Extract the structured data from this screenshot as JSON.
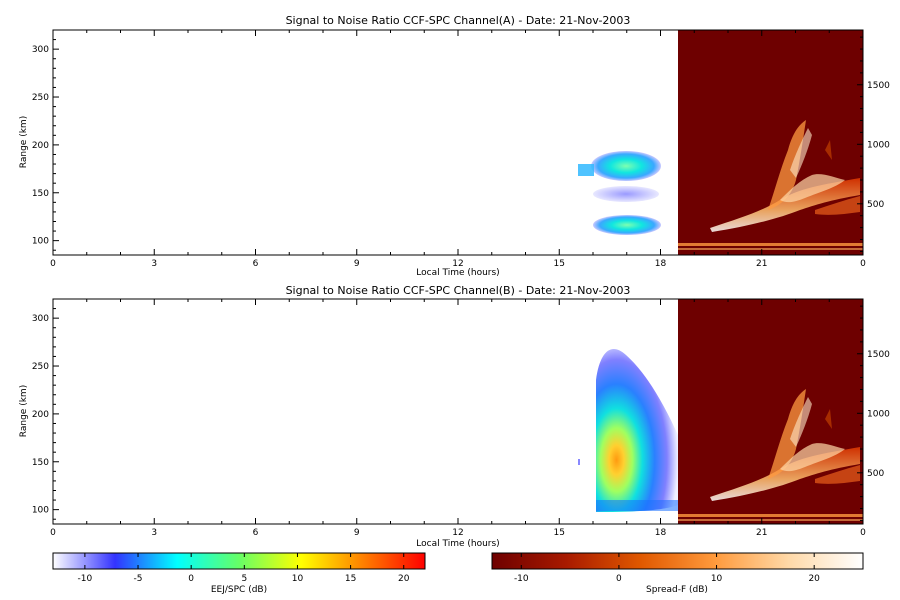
{
  "chart_data": [
    {
      "type": "heatmap",
      "title": "Signal to Noise Ratio CCF-SPC Channel(A) - Date: 21-Nov-2003",
      "xlabel": "Local Time (hours)",
      "ylabel": "Range (km)",
      "xlim": [
        0,
        24
      ],
      "ylim": [
        85,
        320
      ],
      "xticks": [
        "0",
        "3",
        "6",
        "9",
        "12",
        "15",
        "18",
        "21",
        "0"
      ],
      "yticks": [
        "100",
        "150",
        "200",
        "250",
        "300"
      ],
      "y2ticks": [
        "500",
        "1000",
        "1500"
      ],
      "y2lim": [
        70,
        1960
      ],
      "colorbar": "EEJ/SPC (dB)",
      "echo_regions": [
        {
          "x": [
            16.1,
            17.7
          ],
          "y": [
            162,
            195
          ],
          "peak_db": 10
        },
        {
          "x": [
            16.3,
            17.6
          ],
          "y": [
            140,
            155
          ],
          "peak_db": -8
        },
        {
          "x": [
            16.2,
            17.6
          ],
          "y": [
            105,
            125
          ],
          "peak_db": 8
        },
        {
          "x": [
            15.8,
            16.1
          ],
          "y": [
            163,
            172
          ],
          "peak_db": 5
        }
      ],
      "spread_f_start_hour": 18.55,
      "spread_f_plume": {
        "base_range_km": [
          150,
          420
        ],
        "top_range_km": 1200,
        "x": [
          19.5,
          24
        ]
      }
    },
    {
      "type": "heatmap",
      "title": "Signal to Noise Ratio CCF-SPC Channel(B) - Date: 21-Nov-2003",
      "xlabel": "Local Time (hours)",
      "ylabel": "Range (km)",
      "xlim": [
        0,
        24
      ],
      "ylim": [
        85,
        320
      ],
      "xticks": [
        "0",
        "3",
        "6",
        "9",
        "12",
        "15",
        "18",
        "21",
        "0"
      ],
      "yticks": [
        "100",
        "150",
        "200",
        "250",
        "300"
      ],
      "y2ticks": [
        "500",
        "1000",
        "1500"
      ],
      "y2lim": [
        70,
        1960
      ],
      "colorbar": "EEJ/SPC (dB)",
      "echo_regions": [
        {
          "x": [
            16.0,
            18.55
          ],
          "y": [
            100,
            270
          ],
          "peak_db": 15
        }
      ],
      "spread_f_start_hour": 18.55,
      "spread_f_plume": {
        "base_range_km": [
          150,
          420
        ],
        "top_range_km": 1200,
        "x": [
          19.5,
          24
        ]
      }
    }
  ],
  "colorbars": [
    {
      "label": "EEJ/SPC (dB)",
      "range": [
        -13,
        22
      ],
      "ticks": [
        "-10",
        "-5",
        "0",
        "5",
        "10",
        "15",
        "20"
      ],
      "tick_values": [
        -10,
        -5,
        0,
        5,
        10,
        15,
        20
      ],
      "colors": [
        "#ffffff",
        "#3333ff",
        "#00ffff",
        "#66ff66",
        "#ffff00",
        "#ff8000",
        "#ff0000"
      ]
    },
    {
      "label": "Spread-F (dB)",
      "range": [
        -13,
        25
      ],
      "ticks": [
        "-10",
        "0",
        "10",
        "20"
      ],
      "tick_values": [
        -10,
        0,
        10,
        20
      ],
      "colors": [
        "#6e0000",
        "#a81a00",
        "#e05800",
        "#ff9a3c",
        "#ffd9a8",
        "#ffffff"
      ]
    }
  ]
}
